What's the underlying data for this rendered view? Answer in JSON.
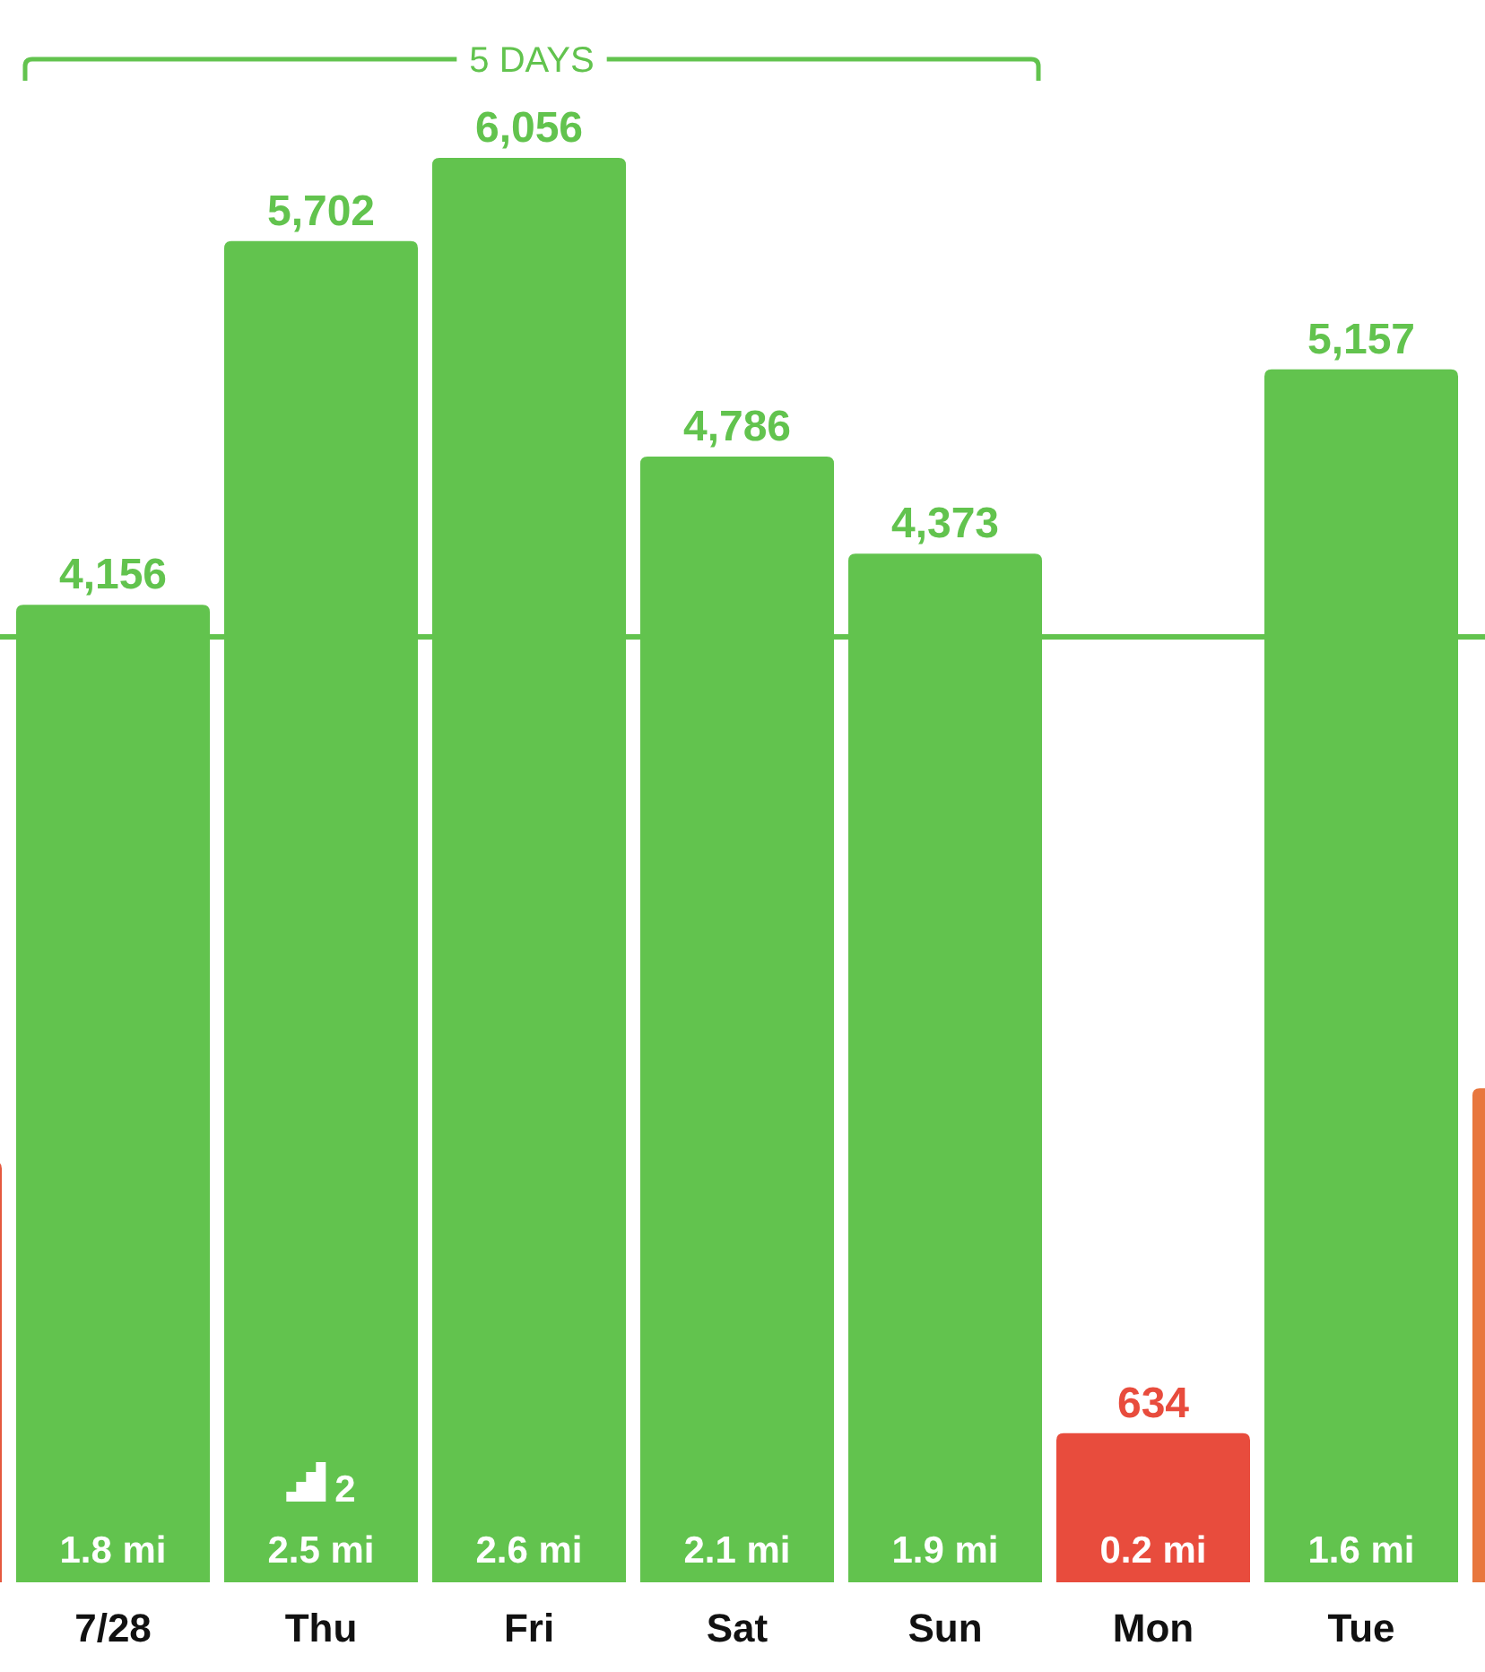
{
  "chart_data": {
    "type": "bar",
    "categories": [
      null,
      "7/28",
      "Thu",
      "Fri",
      "Sat",
      "Sun",
      "Mon",
      "Tue",
      null
    ],
    "values": [
      1790,
      4156,
      5702,
      6056,
      4786,
      4373,
      634,
      5157,
      2100
    ],
    "colors": [
      "#e5593f",
      "#62c34e",
      "#62c34e",
      "#62c34e",
      "#62c34e",
      "#62c34e",
      "#e84c3d",
      "#62c34e",
      "#e8773e"
    ],
    "value_labels": [
      null,
      "4,156",
      "5,702",
      "6,056",
      "4,786",
      "4,373",
      "634",
      "5,157",
      null
    ],
    "tick_labels": "x",
    "ref_lines": [
      {
        "axis": "y",
        "value": 4020,
        "color": "#62c34e"
      }
    ],
    "annotations": [
      "5 DAYS",
      "1.8 mi",
      "2.5 mi",
      "2.6 mi",
      "2.1 mi",
      "1.9 mi",
      "0.2 mi",
      "1.6 mi",
      "2"
    ]
  }
}
